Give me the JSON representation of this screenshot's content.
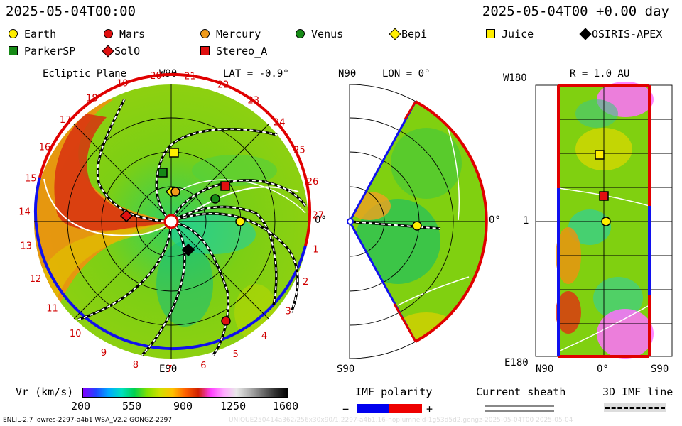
{
  "header": {
    "time": "2025-05-04T00:00",
    "time_offset": "2025-05-04T00 +0.00 day"
  },
  "legend_bodies": [
    {
      "name": "Earth",
      "color": "#ffee00",
      "shape": "circle"
    },
    {
      "name": "Mars",
      "color": "#e01010",
      "shape": "circle"
    },
    {
      "name": "Mercury",
      "color": "#f09a1a",
      "shape": "circle"
    },
    {
      "name": "Venus",
      "color": "#168a16",
      "shape": "circle"
    },
    {
      "name": "Bepi",
      "color": "#ffee00",
      "shape": "diamond"
    },
    {
      "name": "Juice",
      "color": "#ffee00",
      "shape": "square"
    },
    {
      "name": "OSIRIS-APEX",
      "color": "#000000",
      "shape": "diamond"
    },
    {
      "name": "ParkerSP",
      "color": "#168a16",
      "shape": "square"
    },
    {
      "name": "SolO",
      "color": "#e01010",
      "shape": "diamond"
    },
    {
      "name": "Stereo_A",
      "color": "#e01010",
      "shape": "square"
    }
  ],
  "ecliptic": {
    "title": "Ecliptic Plane",
    "lat_label": "LAT = -0.9°",
    "w90": "W90",
    "e90": "E90",
    "zero": "0°",
    "rotation_numbers": [
      "20",
      "21",
      "22",
      "23",
      "24",
      "25",
      "26",
      "27",
      "1",
      "2",
      "3",
      "4",
      "5",
      "6",
      "7",
      "8",
      "9",
      "10",
      "11",
      "12",
      "13",
      "14",
      "15",
      "16",
      "17",
      "18",
      "19"
    ]
  },
  "meridional": {
    "title": "LON = 0°",
    "n90": "N90",
    "s90": "S90",
    "zero": "0°"
  },
  "mercator": {
    "title": "R = 1.0 AU",
    "w180": "W180",
    "e180": "E180",
    "one": "1",
    "n90": "N90",
    "zero": "0°",
    "s90": "S90"
  },
  "colorbar": {
    "label": "Vr (km/s)",
    "ticks": [
      "200",
      "550",
      "900",
      "1250",
      "1600"
    ],
    "colors": [
      "#7f00ff",
      "#2244ff",
      "#00aaff",
      "#00e0c0",
      "#00d050",
      "#80e000",
      "#d0e000",
      "#ffc000",
      "#ff6000",
      "#d02000",
      "#ff40ff",
      "#ffaaff",
      "#e8e8e8",
      "#b0b0b0",
      "#707070",
      "#303030",
      "#000000"
    ]
  },
  "imf": {
    "label": "IMF polarity",
    "minus": "−",
    "plus": "+",
    "minus_color": "#0000ee",
    "plus_color": "#ee0000"
  },
  "sheath": {
    "label": "Current sheath"
  },
  "line3d": {
    "label": "3D IMF line"
  },
  "footer": {
    "left": "ENLIL-2.7 lowres-2297-a4b1 WSA_V2.2 GONGZ-2297",
    "right": "UNIQUE250414a362/256x30x90/1.2297-a4b1.16-noplumneld-1g53d5d2.gongz-2025-05-04T00   2025-05-04"
  },
  "chart_data": [
    {
      "type": "heatmap",
      "title": "Ecliptic Plane",
      "subtitle": "LAT = -0.9°",
      "variable": "Vr (km/s)",
      "range": [
        200,
        1600
      ],
      "bodies": [
        "Earth",
        "Mars",
        "Mercury",
        "Venus",
        "Bepi",
        "Juice",
        "OSIRIS-APEX",
        "ParkerSP",
        "SolO",
        "Stereo_A"
      ]
    },
    {
      "type": "heatmap",
      "title": "LON = 0°",
      "variable": "Vr (km/s)",
      "range": [
        200,
        1600
      ],
      "bodies": [
        "Earth"
      ]
    },
    {
      "type": "heatmap",
      "title": "R = 1.0 AU",
      "variable": "Vr (km/s)",
      "range": [
        200,
        1600
      ],
      "bodies": [
        "Earth",
        "Juice",
        "Stereo_A"
      ]
    }
  ]
}
